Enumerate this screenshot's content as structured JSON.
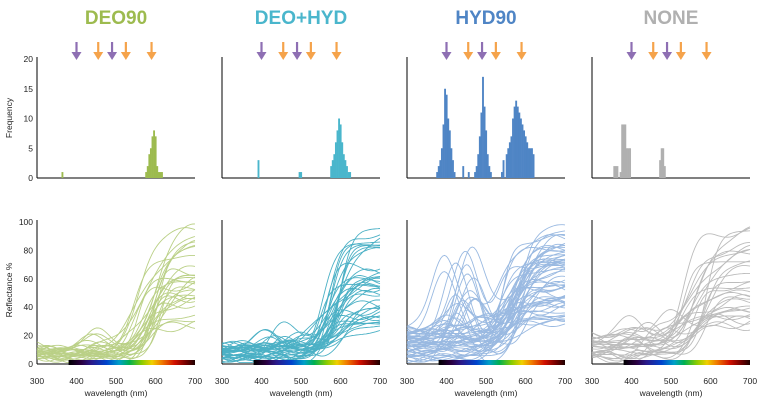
{
  "chart_data": {
    "type": "histogram+line",
    "panels": [
      {
        "title": "DEO90",
        "color": "#9dbb4f",
        "line_color": "#b3cb7a",
        "histogram_bars": [
          [
            362,
            1
          ],
          [
            574,
            1
          ],
          [
            578,
            2
          ],
          [
            582,
            4
          ],
          [
            586,
            5
          ],
          [
            590,
            7
          ],
          [
            594,
            8
          ],
          [
            598,
            7
          ],
          [
            602,
            2
          ],
          [
            606,
            1
          ],
          [
            610,
            1
          ],
          [
            614,
            1
          ]
        ],
        "arrows": [
          {
            "x": 400,
            "color": "purple"
          },
          {
            "x": 455,
            "color": "orange"
          },
          {
            "x": 490,
            "color": "purple"
          },
          {
            "x": 525,
            "color": "orange"
          },
          {
            "x": 590,
            "color": "orange"
          }
        ],
        "reflectance_curves": 30
      },
      {
        "title": "DEO+HYD",
        "color": "#4ab6cc",
        "line_color": "#38a8bf",
        "histogram_bars": [
          [
            390,
            3
          ],
          [
            494,
            1
          ],
          [
            498,
            1
          ],
          [
            574,
            2
          ],
          [
            578,
            3
          ],
          [
            582,
            4
          ],
          [
            586,
            6
          ],
          [
            590,
            8
          ],
          [
            594,
            10
          ],
          [
            598,
            9
          ],
          [
            602,
            6
          ],
          [
            606,
            4
          ],
          [
            610,
            3
          ],
          [
            614,
            2
          ],
          [
            618,
            1
          ],
          [
            622,
            1
          ]
        ],
        "arrows": [
          {
            "x": 400,
            "color": "purple"
          },
          {
            "x": 455,
            "color": "orange"
          },
          {
            "x": 490,
            "color": "purple"
          },
          {
            "x": 525,
            "color": "orange"
          },
          {
            "x": 590,
            "color": "orange"
          }
        ],
        "reflectance_curves": 40
      },
      {
        "title": "HYD90",
        "color": "#4f85c5",
        "line_color": "#8fb2de",
        "histogram_bars": [
          [
            374,
            1
          ],
          [
            378,
            2
          ],
          [
            382,
            3
          ],
          [
            386,
            5
          ],
          [
            390,
            9
          ],
          [
            394,
            15
          ],
          [
            398,
            14
          ],
          [
            402,
            10
          ],
          [
            406,
            8
          ],
          [
            410,
            5
          ],
          [
            414,
            3
          ],
          [
            418,
            1
          ],
          [
            440,
            2
          ],
          [
            454,
            1
          ],
          [
            470,
            1
          ],
          [
            474,
            2
          ],
          [
            478,
            4
          ],
          [
            482,
            7
          ],
          [
            486,
            11
          ],
          [
            490,
            17
          ],
          [
            494,
            12
          ],
          [
            498,
            8
          ],
          [
            502,
            4
          ],
          [
            506,
            2
          ],
          [
            510,
            1
          ],
          [
            538,
            1
          ],
          [
            542,
            3
          ],
          [
            550,
            4
          ],
          [
            554,
            5
          ],
          [
            558,
            6
          ],
          [
            562,
            7
          ],
          [
            566,
            10
          ],
          [
            570,
            12
          ],
          [
            574,
            13
          ],
          [
            578,
            12
          ],
          [
            582,
            11
          ],
          [
            586,
            10
          ],
          [
            590,
            9
          ],
          [
            594,
            8
          ],
          [
            598,
            7
          ],
          [
            602,
            6
          ],
          [
            606,
            5
          ],
          [
            610,
            5
          ],
          [
            614,
            5
          ],
          [
            618,
            4
          ]
        ],
        "arrows": [
          {
            "x": 400,
            "color": "purple"
          },
          {
            "x": 455,
            "color": "orange"
          },
          {
            "x": 490,
            "color": "purple"
          },
          {
            "x": 525,
            "color": "orange"
          },
          {
            "x": 590,
            "color": "orange"
          }
        ],
        "reflectance_curves": 60
      },
      {
        "title": "NONE",
        "color": "#b0b0b0",
        "line_color": "#b5b5b5",
        "histogram_bars": [
          [
            354,
            2
          ],
          [
            358,
            2
          ],
          [
            362,
            2
          ],
          [
            370,
            1
          ],
          [
            374,
            9
          ],
          [
            378,
            9
          ],
          [
            382,
            9
          ],
          [
            386,
            5
          ],
          [
            390,
            5
          ],
          [
            394,
            5
          ],
          [
            470,
            3
          ],
          [
            474,
            5
          ],
          [
            478,
            5
          ],
          [
            482,
            2
          ]
        ],
        "arrows": [
          {
            "x": 400,
            "color": "purple"
          },
          {
            "x": 455,
            "color": "orange"
          },
          {
            "x": 490,
            "color": "purple"
          },
          {
            "x": 525,
            "color": "orange"
          },
          {
            "x": 590,
            "color": "orange"
          }
        ],
        "reflectance_curves": 30
      }
    ],
    "histogram": {
      "ylabel": "Frequency",
      "ylim": [
        0,
        20
      ],
      "yticks": [
        0,
        5,
        10,
        15,
        20
      ],
      "xlim": [
        300,
        700
      ]
    },
    "reflectance": {
      "ylabel": "Reflectance %",
      "xlabel": "wavelength (nm)",
      "ylim": [
        0,
        100
      ],
      "yticks": [
        0,
        20,
        40,
        60,
        80,
        100
      ],
      "xlim": [
        300,
        700
      ],
      "xticks": [
        300,
        400,
        500,
        600,
        700
      ],
      "spectrum_bar_range": [
        380,
        700
      ]
    },
    "arrow_colors": {
      "purple": "#8e6fb3",
      "orange": "#f5a34b"
    }
  }
}
